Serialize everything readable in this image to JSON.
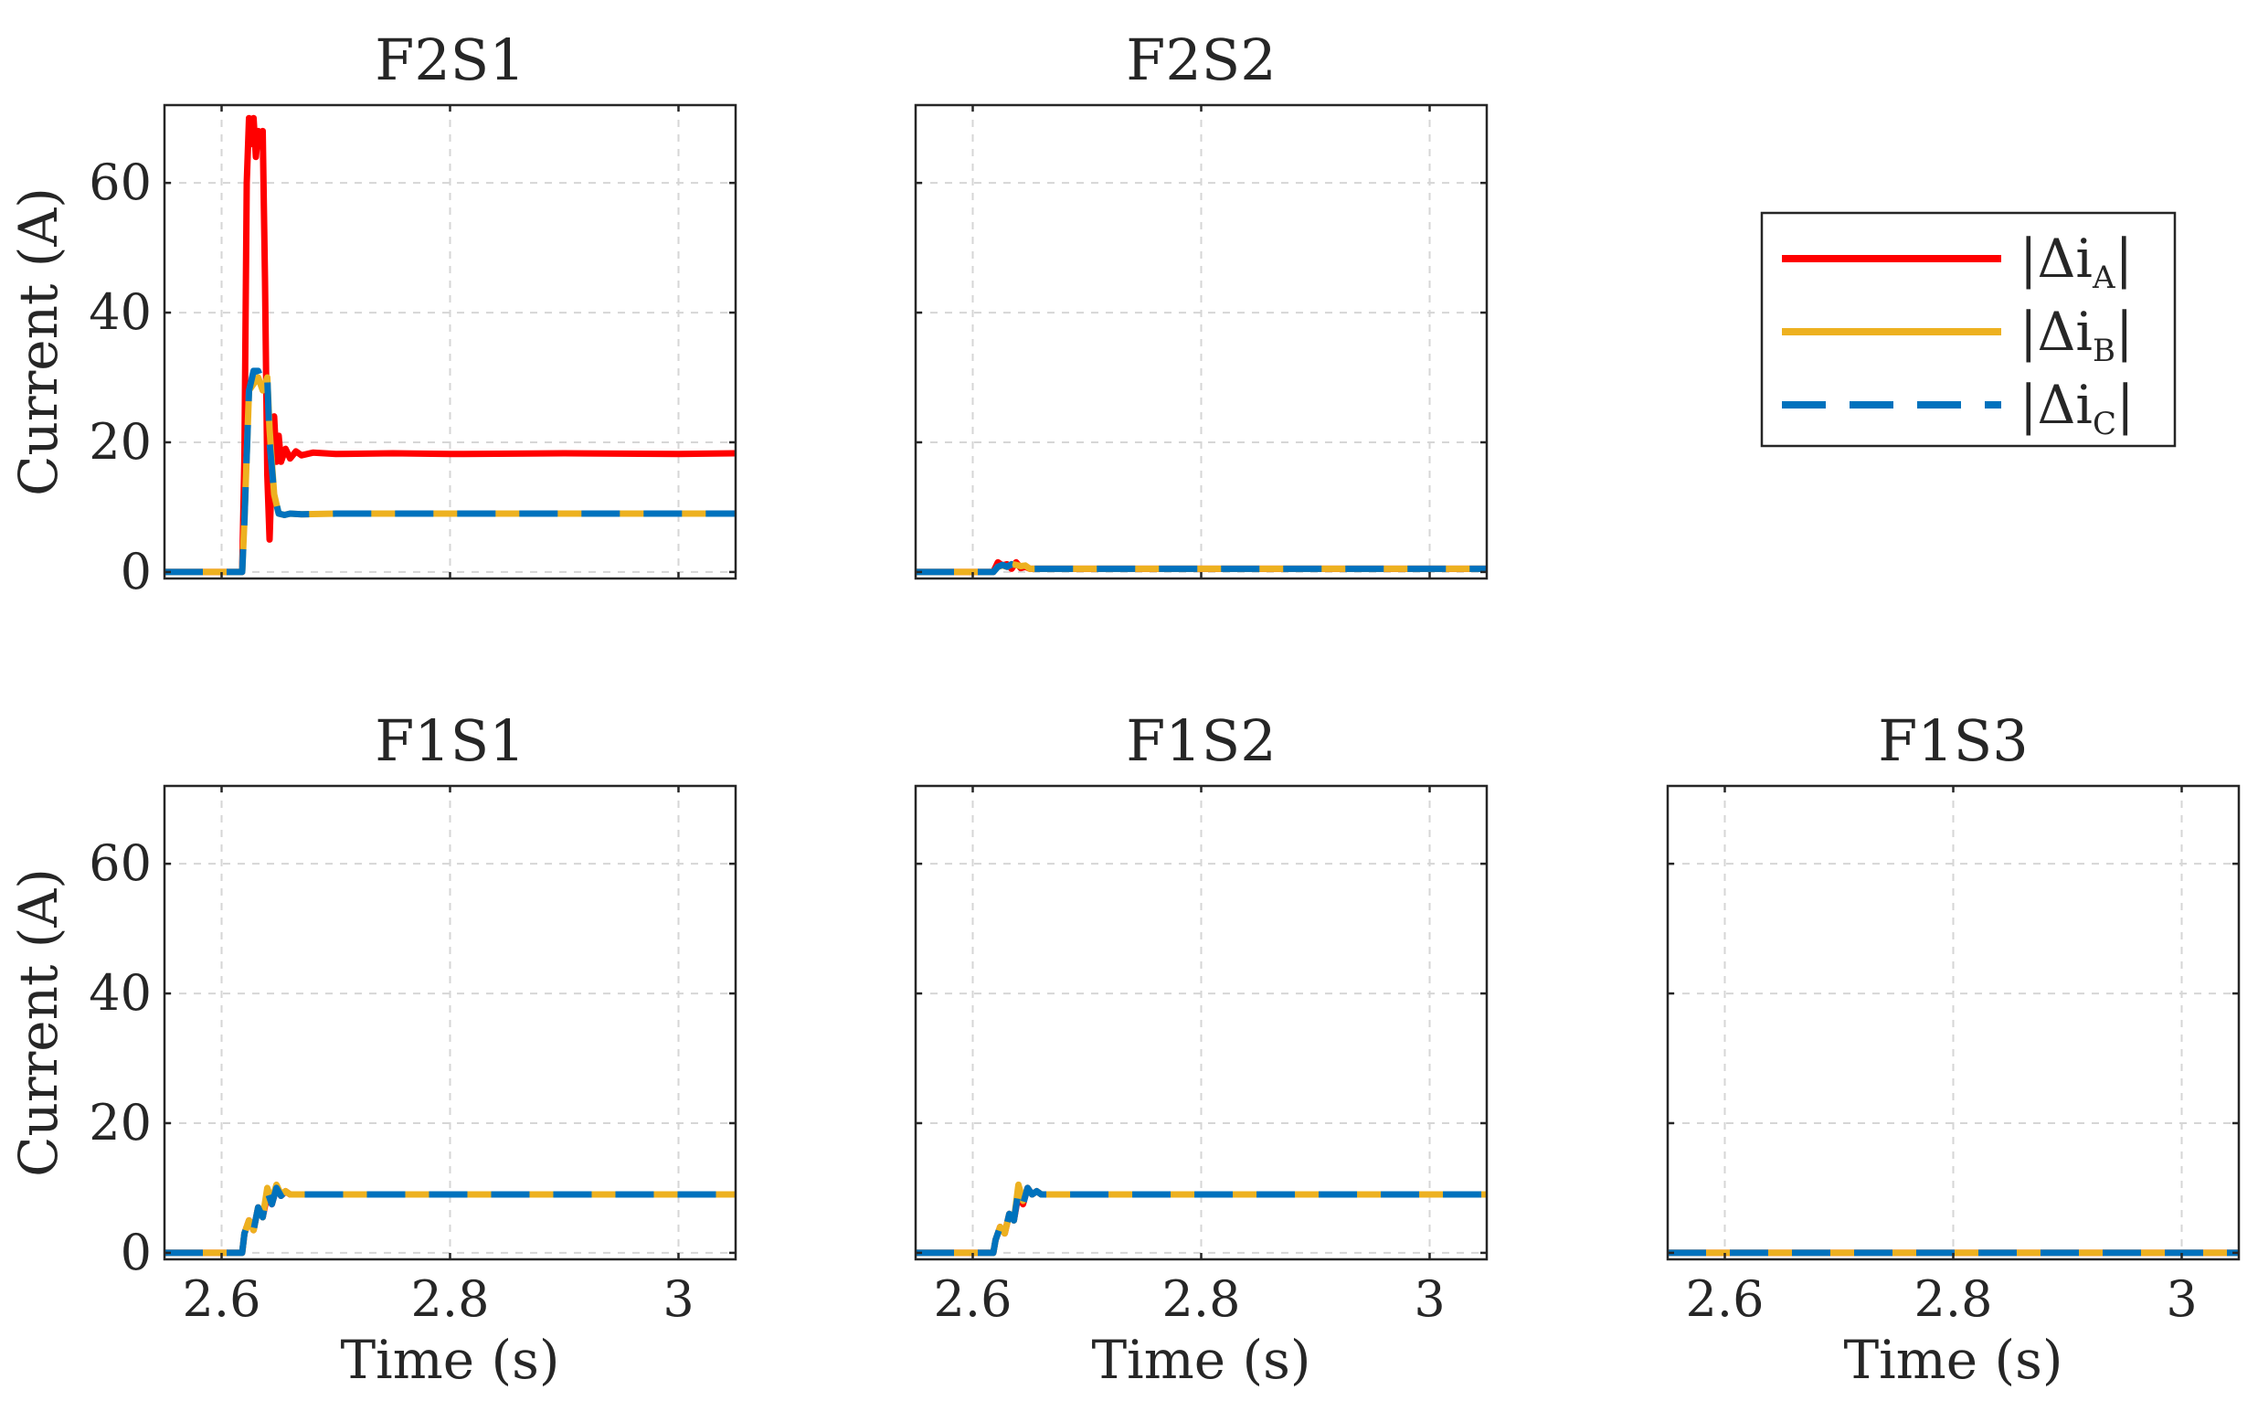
{
  "chart_data": {
    "type": "line",
    "shared": {
      "xlim": [
        2.55,
        3.05
      ],
      "ylim": [
        -1,
        72
      ],
      "xticks": [
        2.6,
        2.8,
        3
      ],
      "xtick_labels": [
        "2.6",
        "2.8",
        "3"
      ],
      "yticks": [
        0,
        20,
        40,
        60
      ],
      "ytick_labels": [
        "0",
        "20",
        "40",
        "60"
      ],
      "xlabel": "Time (s)",
      "ylabel": "Current (A)",
      "grid": true
    },
    "legend": {
      "placement": "top-right",
      "entries": [
        {
          "pre": "|Δi",
          "sub": "A",
          "post": "|",
          "color": "#ff0000",
          "style": "solid"
        },
        {
          "pre": "|Δi",
          "sub": "B",
          "post": "|",
          "color": "#edb120",
          "style": "solid"
        },
        {
          "pre": "|Δi",
          "sub": "C",
          "post": "|",
          "color": "#0072bd",
          "style": "dashed"
        }
      ]
    },
    "colors": {
      "A": "#ff0000",
      "B": "#edb120",
      "C": "#0072bd"
    },
    "panels": [
      {
        "title": "F2S1",
        "row": 0,
        "col": 0,
        "show_ylabel": true,
        "show_xlabel": false,
        "show_xticklabels": false,
        "series": [
          {
            "name": "A",
            "x": [
              2.55,
              2.618,
              2.62,
              2.622,
              2.624,
              2.626,
              2.628,
              2.63,
              2.632,
              2.634,
              2.636,
              2.638,
              2.64,
              2.642,
              2.644,
              2.646,
              2.648,
              2.65,
              2.652,
              2.656,
              2.66,
              2.665,
              2.67,
              2.68,
              2.7,
              2.75,
              2.8,
              2.9,
              3.0,
              3.05
            ],
            "y": [
              0,
              0,
              18,
              60,
              70,
              66,
              70,
              64,
              68,
              66,
              68,
              45,
              15,
              5,
              16,
              24,
              17,
              21,
              17,
              19,
              17.5,
              18.6,
              18,
              18.4,
              18.2,
              18.3,
              18.2,
              18.3,
              18.2,
              18.3
            ]
          },
          {
            "name": "B",
            "x": [
              2.55,
              2.618,
              2.62,
              2.624,
              2.628,
              2.632,
              2.636,
              2.64,
              2.642,
              2.646,
              2.65,
              2.655,
              2.66,
              2.67,
              2.7,
              3.05
            ],
            "y": [
              0,
              0,
              8,
              28,
              29,
              30,
              28,
              30,
              22,
              12,
              9,
              8.8,
              9,
              8.9,
              9,
              9
            ]
          },
          {
            "name": "C",
            "x": [
              2.55,
              2.618,
              2.62,
              2.624,
              2.628,
              2.632,
              2.636,
              2.64,
              2.642,
              2.646,
              2.65,
              2.655,
              2.66,
              2.67,
              2.7,
              3.05
            ],
            "y": [
              0,
              0,
              8,
              28,
              31,
              31,
              29,
              30,
              20,
              12,
              9,
              8.8,
              9,
              8.9,
              9,
              9
            ]
          }
        ]
      },
      {
        "title": "F2S2",
        "row": 0,
        "col": 1,
        "show_ylabel": false,
        "show_xlabel": false,
        "show_xticklabels": false,
        "series": [
          {
            "name": "A",
            "x": [
              2.55,
              2.618,
              2.622,
              2.626,
              2.63,
              2.634,
              2.638,
              2.642,
              2.646,
              2.65,
              3.05
            ],
            "y": [
              0,
              0,
              1.5,
              1,
              1.2,
              0.5,
              1.5,
              0.6,
              0.8,
              0.5,
              0.5
            ]
          },
          {
            "name": "B",
            "x": [
              2.55,
              2.618,
              2.622,
              2.626,
              2.63,
              2.634,
              2.638,
              2.642,
              2.646,
              2.65,
              3.05
            ],
            "y": [
              0,
              0,
              0.8,
              1,
              0.8,
              1.2,
              1.1,
              0.9,
              1.0,
              0.5,
              0.5
            ]
          },
          {
            "name": "C",
            "x": [
              2.55,
              2.618,
              2.622,
              2.626,
              2.63,
              2.634,
              2.638,
              2.642,
              2.646,
              2.65,
              3.05
            ],
            "y": [
              0,
              0,
              0.8,
              1.1,
              0.8,
              1.2,
              1.0,
              1.2,
              0.8,
              0.5,
              0.5
            ]
          }
        ]
      },
      {
        "title": "F1S1",
        "row": 1,
        "col": 0,
        "show_ylabel": true,
        "show_xlabel": true,
        "show_xticklabels": true,
        "series": [
          {
            "name": "A",
            "x": [
              2.55,
              2.618,
              2.62,
              2.624,
              2.628,
              2.632,
              2.636,
              2.64,
              2.644,
              2.648,
              2.652,
              2.656,
              2.66,
              2.67,
              3.05
            ],
            "y": [
              0,
              0,
              3,
              5,
              3.5,
              7,
              5.5,
              9,
              7.5,
              10,
              8.8,
              9.5,
              9,
              9,
              9
            ]
          },
          {
            "name": "B",
            "x": [
              2.55,
              2.618,
              2.62,
              2.624,
              2.628,
              2.632,
              2.636,
              2.64,
              2.644,
              2.648,
              2.652,
              2.656,
              2.66,
              2.67,
              3.05
            ],
            "y": [
              0,
              0,
              3,
              5,
              3.5,
              7,
              5.5,
              10,
              8,
              10.5,
              9,
              9.5,
              9,
              9,
              9
            ]
          },
          {
            "name": "C",
            "x": [
              2.55,
              2.618,
              2.62,
              2.624,
              2.628,
              2.632,
              2.636,
              2.64,
              2.644,
              2.648,
              2.652,
              2.656,
              2.66,
              2.67,
              3.05
            ],
            "y": [
              0,
              0,
              3,
              5,
              3.5,
              7,
              5.5,
              9.5,
              7.5,
              10,
              8.8,
              9.5,
              9,
              9,
              9
            ]
          }
        ]
      },
      {
        "title": "F1S2",
        "row": 1,
        "col": 1,
        "show_ylabel": false,
        "show_xlabel": true,
        "show_xticklabels": true,
        "series": [
          {
            "name": "A",
            "x": [
              2.55,
              2.618,
              2.62,
              2.624,
              2.628,
              2.632,
              2.636,
              2.64,
              2.644,
              2.648,
              2.652,
              2.656,
              2.66,
              2.67,
              3.05
            ],
            "y": [
              0,
              0,
              2,
              4,
              3,
              6,
              5,
              9,
              7.5,
              10,
              9,
              9.5,
              9,
              9,
              9
            ]
          },
          {
            "name": "B",
            "x": [
              2.55,
              2.618,
              2.62,
              2.624,
              2.628,
              2.632,
              2.636,
              2.64,
              2.644,
              2.648,
              2.652,
              2.656,
              2.66,
              2.67,
              3.05
            ],
            "y": [
              0,
              0,
              2,
              4,
              3,
              6,
              5,
              10.5,
              8,
              10,
              9,
              9.5,
              9,
              9,
              9
            ]
          },
          {
            "name": "C",
            "x": [
              2.55,
              2.618,
              2.62,
              2.624,
              2.628,
              2.632,
              2.636,
              2.64,
              2.644,
              2.648,
              2.652,
              2.656,
              2.66,
              2.67,
              3.05
            ],
            "y": [
              0,
              0,
              2,
              4,
              3,
              6,
              5,
              9.5,
              7.5,
              10,
              9,
              9.5,
              9,
              9,
              9
            ]
          }
        ]
      },
      {
        "title": "F1S3",
        "row": 1,
        "col": 2,
        "show_ylabel": false,
        "show_xlabel": true,
        "show_xticklabels": true,
        "series": [
          {
            "name": "A",
            "x": [
              2.55,
              3.05
            ],
            "y": [
              0,
              0
            ]
          },
          {
            "name": "B",
            "x": [
              2.55,
              3.05
            ],
            "y": [
              0,
              0
            ]
          },
          {
            "name": "C",
            "x": [
              2.55,
              3.05
            ],
            "y": [
              0,
              0
            ]
          }
        ]
      }
    ]
  }
}
